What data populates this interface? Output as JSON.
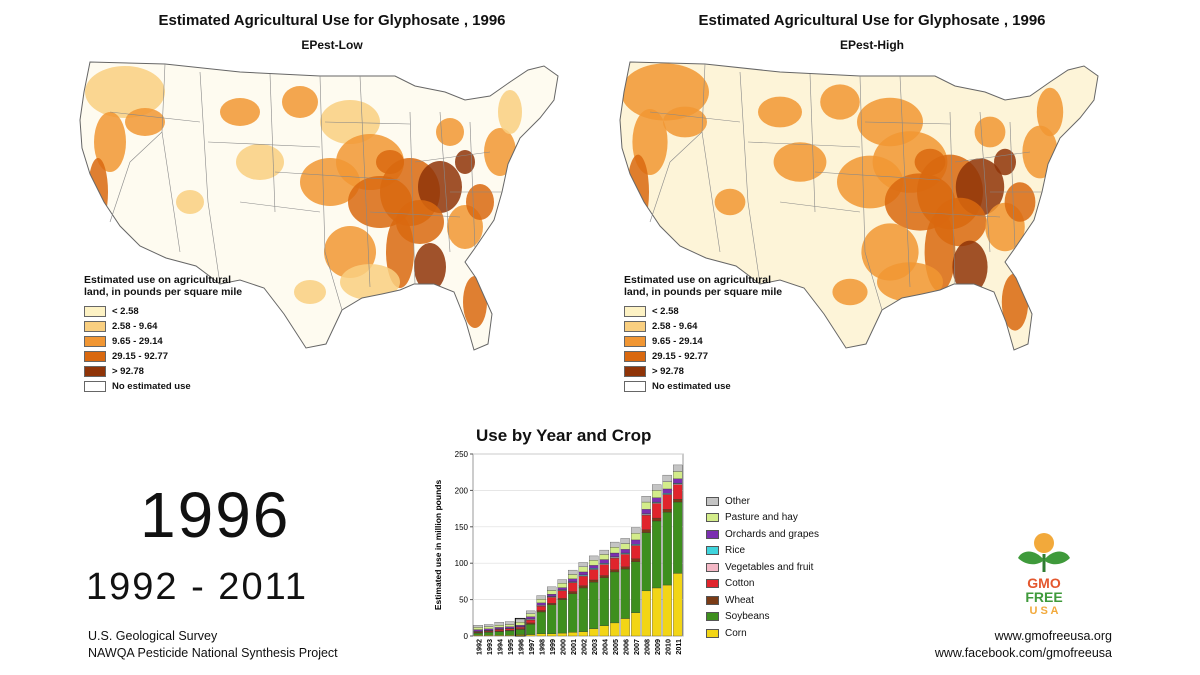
{
  "maps": [
    {
      "title": "Estimated Agricultural Use for Glyphosate , 1996",
      "subtitle": "EPest-Low"
    },
    {
      "title": "Estimated Agricultural Use for Glyphosate , 1996",
      "subtitle": "EPest-High"
    }
  ],
  "map_legend": {
    "title": "Estimated use on agricultural land, in pounds per square mile",
    "items": [
      {
        "label": "< 2.58",
        "color": "#fdf2c4"
      },
      {
        "label": "2.58 - 9.64",
        "color": "#f9cf80"
      },
      {
        "label": "9.65 - 29.14",
        "color": "#f19633"
      },
      {
        "label": "29.15 - 92.77",
        "color": "#d9680f"
      },
      {
        "label": "> 92.78",
        "color": "#8f3408"
      },
      {
        "label": "No estimated use",
        "color": "#ffffff"
      }
    ]
  },
  "year": "1996",
  "year_range": "1992 - 2011",
  "credits": [
    "U.S. Geological Survey",
    "NAWQA Pesticide National Synthesis Project"
  ],
  "websites": [
    "www.gmofreeusa.org",
    "www.facebook.com/gmofreeusa"
  ],
  "logo": {
    "line1": "GMO",
    "line2": "FREE",
    "line3": "U S A"
  },
  "chart_data": {
    "type": "bar",
    "stacked": true,
    "title": "Use by Year and Crop",
    "ylabel": "Estimated use in million pounds",
    "xlabel": "",
    "ylim": [
      0,
      250
    ],
    "yticks": [
      0,
      50,
      100,
      150,
      200,
      250
    ],
    "grid": true,
    "legend_position": "right",
    "categories": [
      "1992",
      "1993",
      "1994",
      "1995",
      "1996",
      "1997",
      "1998",
      "1999",
      "2000",
      "2001",
      "2002",
      "2003",
      "2004",
      "2005",
      "2006",
      "2007",
      "2008",
      "2009",
      "2010",
      "2011"
    ],
    "highlight_category": "1996",
    "series": [
      {
        "name": "Corn",
        "color": "#f2d516",
        "values": [
          1,
          1,
          1,
          1,
          2,
          2,
          3,
          3,
          4,
          5,
          6,
          10,
          14,
          18,
          24,
          32,
          62,
          66,
          70,
          86
        ]
      },
      {
        "name": "Soybeans",
        "color": "#3e8f1e",
        "values": [
          3,
          4,
          5,
          6,
          7,
          14,
          30,
          40,
          46,
          53,
          60,
          64,
          66,
          70,
          68,
          70,
          80,
          92,
          100,
          98
        ]
      },
      {
        "name": "Wheat",
        "color": "#7a3b16",
        "values": [
          1,
          1,
          1,
          1,
          1,
          2,
          2,
          2,
          2,
          3,
          3,
          3,
          3,
          3,
          3,
          4,
          4,
          4,
          4,
          4
        ]
      },
      {
        "name": "Cotton",
        "color": "#e0242c",
        "values": [
          1,
          1,
          2,
          2,
          2,
          4,
          6,
          8,
          10,
          12,
          13,
          14,
          15,
          16,
          17,
          18,
          20,
          20,
          20,
          20
        ]
      },
      {
        "name": "Vegetables and fruit",
        "color": "#f4b8c6",
        "values": [
          0.5,
          0.5,
          0.5,
          0.5,
          0.5,
          1,
          1,
          1,
          1,
          1,
          1,
          1,
          1,
          1,
          1,
          1,
          1,
          1,
          1,
          1
        ]
      },
      {
        "name": "Rice",
        "color": "#3fd4dc",
        "values": [
          0.3,
          0.3,
          0.3,
          0.3,
          0.3,
          0.5,
          0.5,
          0.5,
          0.5,
          0.5,
          1,
          1,
          1,
          1,
          1,
          1,
          1,
          1,
          1,
          1
        ]
      },
      {
        "name": "Orchards and grapes",
        "color": "#7b2fb0",
        "values": [
          2,
          2,
          2,
          2,
          2,
          3,
          3,
          3,
          3,
          4,
          4,
          4,
          5,
          5,
          5,
          6,
          6,
          6,
          6,
          6
        ]
      },
      {
        "name": "Pasture and hay",
        "color": "#d3ec8a",
        "values": [
          3,
          3,
          3,
          3,
          4,
          4,
          5,
          5,
          6,
          6,
          7,
          7,
          7,
          8,
          8,
          9,
          10,
          10,
          10,
          10
        ]
      },
      {
        "name": "Other",
        "color": "#c4c4c4",
        "values": [
          3,
          3,
          4,
          4,
          4,
          4,
          5,
          5,
          5,
          6,
          6,
          6,
          6,
          7,
          7,
          8,
          8,
          8,
          9,
          9
        ]
      }
    ]
  }
}
